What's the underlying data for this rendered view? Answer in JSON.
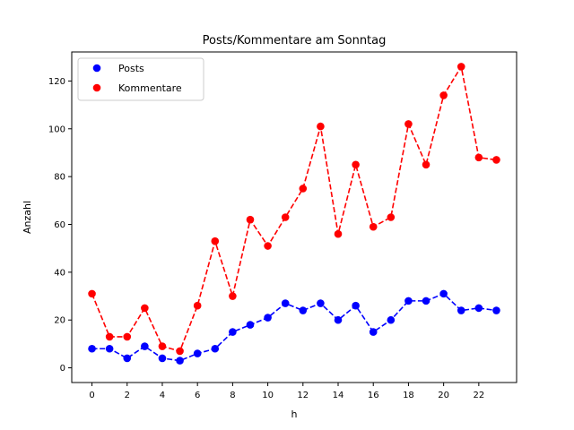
{
  "chart_data": {
    "type": "line",
    "title": "Posts/Kommentare am Sonntag",
    "xlabel": "h",
    "ylabel": "Anzahl",
    "xlim": [
      -1.15,
      24.15
    ],
    "ylim": [
      -6.15,
      132.15
    ],
    "xticks": [
      0,
      2,
      4,
      6,
      8,
      10,
      12,
      14,
      16,
      18,
      20,
      22
    ],
    "yticks": [
      0,
      20,
      40,
      60,
      80,
      100,
      120
    ],
    "grid": false,
    "legend_position": "top-left",
    "x": [
      0,
      1,
      2,
      3,
      4,
      5,
      6,
      7,
      8,
      9,
      10,
      11,
      12,
      13,
      14,
      15,
      16,
      17,
      18,
      19,
      20,
      21,
      22,
      23
    ],
    "series": [
      {
        "name": "Posts",
        "color": "#0000ff",
        "values": [
          8,
          8,
          4,
          9,
          4,
          3,
          6,
          8,
          15,
          18,
          21,
          27,
          24,
          27,
          20,
          26,
          15,
          20,
          28,
          28,
          31,
          24,
          25,
          24
        ]
      },
      {
        "name": "Kommentare",
        "color": "#ff0000",
        "values": [
          31,
          13,
          13,
          25,
          9,
          7,
          26,
          53,
          30,
          62,
          51,
          63,
          75,
          101,
          56,
          85,
          59,
          63,
          102,
          85,
          114,
          126,
          88,
          87
        ]
      }
    ]
  }
}
